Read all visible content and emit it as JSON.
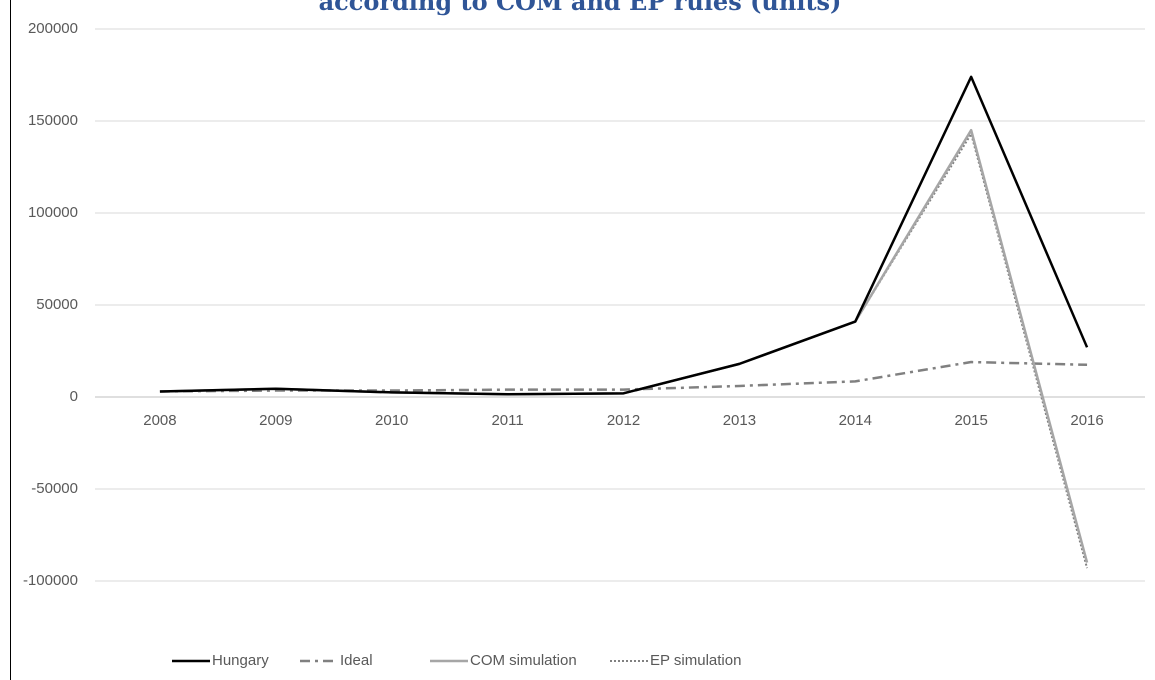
{
  "chart_data": {
    "type": "line",
    "title": "according to COM and EP rules (units)",
    "categories": [
      "2008",
      "2009",
      "2010",
      "2011",
      "2012",
      "2013",
      "2014",
      "2015",
      "2016"
    ],
    "series": [
      {
        "name": "Hungary",
        "color": "#000000",
        "dash": "solid",
        "values": [
          3000,
          4500,
          2500,
          1500,
          2000,
          18000,
          41000,
          174000,
          27000
        ]
      },
      {
        "name": "Ideal",
        "color": "#808080",
        "dash": "dash-dot",
        "values": [
          3000,
          3500,
          3500,
          4000,
          4000,
          6000,
          8500,
          19000,
          17500
        ]
      },
      {
        "name": "COM simulation",
        "color": "#a6a6a6",
        "dash": "solid",
        "values": [
          3000,
          4500,
          2500,
          1500,
          2000,
          18000,
          41000,
          145000,
          -90000
        ]
      },
      {
        "name": "EP simulation",
        "color": "#808080",
        "dash": "dotted",
        "values": [
          3000,
          4500,
          2500,
          1500,
          2000,
          18000,
          41000,
          143000,
          -93000
        ]
      }
    ],
    "ylim": [
      -100000,
      200000
    ],
    "yticks": [
      -100000,
      -50000,
      0,
      50000,
      100000,
      150000,
      200000
    ],
    "grid": true,
    "legend": "bottom"
  }
}
